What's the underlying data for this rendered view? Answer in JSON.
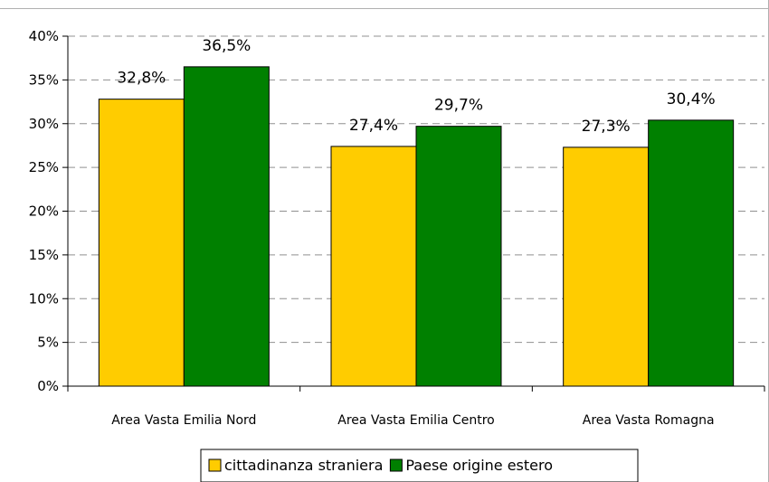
{
  "chart_data": {
    "type": "bar",
    "categories": [
      "Area Vasta Emilia Nord",
      "Area Vasta Emilia Centro",
      "Area Vasta Romagna"
    ],
    "series": [
      {
        "name": "cittadinanza straniera",
        "values": [
          32.8,
          27.4,
          27.3
        ],
        "labels": [
          "32,8%",
          "27,4%",
          "27,3%"
        ],
        "color": "#FFCC00"
      },
      {
        "name": "Paese origine estero",
        "values": [
          36.5,
          29.7,
          30.4
        ],
        "labels": [
          "36,5%",
          "29,7%",
          "30,4%"
        ],
        "color": "#008000"
      }
    ],
    "ylim": [
      0,
      40
    ],
    "yticks": [
      "0%",
      "5%",
      "10%",
      "15%",
      "20%",
      "25%",
      "30%",
      "35%",
      "40%"
    ],
    "grid": true,
    "legend_position": "bottom"
  }
}
